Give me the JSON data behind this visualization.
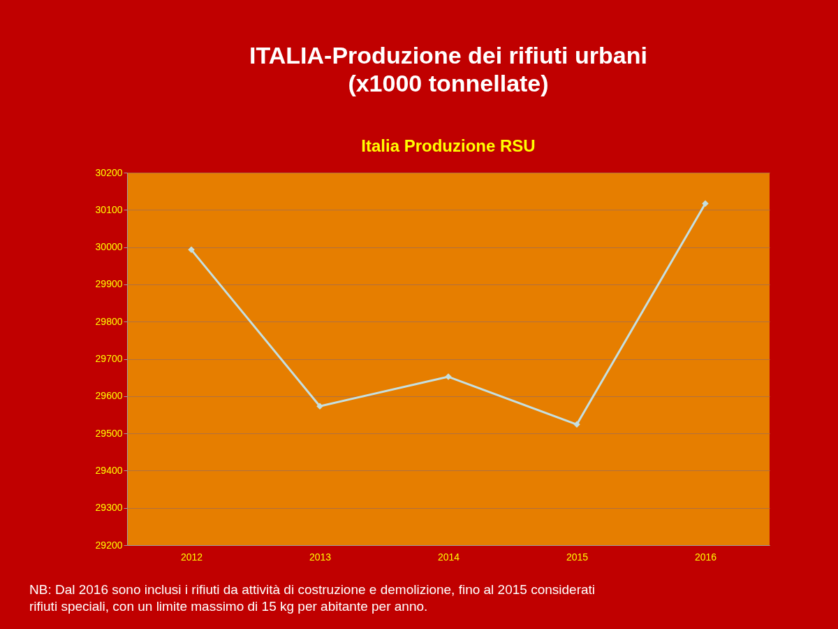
{
  "chart_data": {
    "type": "line",
    "title": [
      "ITALIA-Produzione dei rifiuti urbani",
      "(x1000 tonnellate)"
    ],
    "subtitle": "Italia  Produzione RSU",
    "categories": [
      "2012",
      "2013",
      "2014",
      "2015",
      "2016"
    ],
    "series": [
      {
        "color": "#c5dfe0",
        "values": [
          29993,
          29573,
          29652,
          29524,
          30117
        ]
      }
    ],
    "ylim": [
      29200,
      30200
    ],
    "yticks": [
      29200,
      29300,
      29400,
      29500,
      29600,
      29700,
      29800,
      29900,
      30000,
      30100,
      30200
    ],
    "grid": "y",
    "legend": false,
    "marker": "diamond",
    "line_style": "solid",
    "annotations": [
      "NB: Dal 2016 sono inclusi i rifiuti  da  attività  di  costruzione  e demolizione, fino al 2015 considerati\nrifiuti speciali, con un limite massimo di 15 kg per abitante per anno."
    ]
  }
}
